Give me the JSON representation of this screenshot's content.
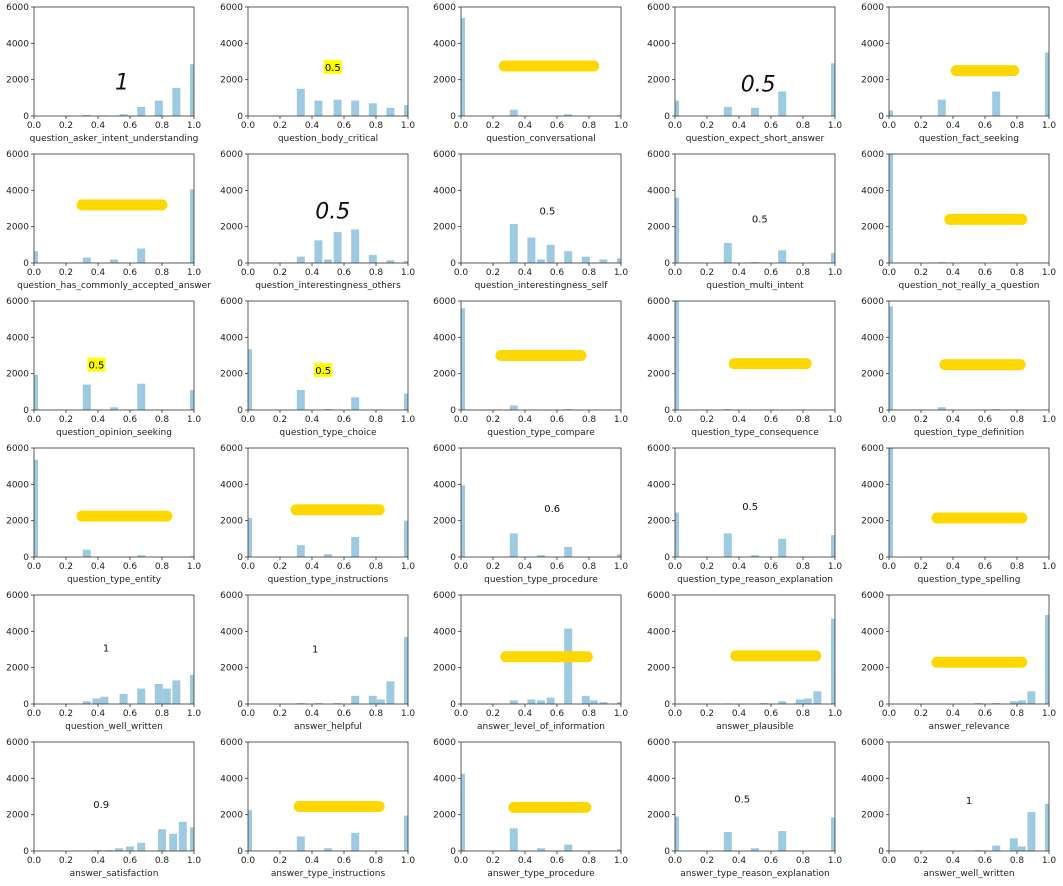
{
  "colors": {
    "bar": "#9ecae1",
    "axis": "#333333",
    "highlight": "#ffff00",
    "marker": "#ffd700"
  },
  "x_ticks": [
    "0.0",
    "0.2",
    "0.4",
    "0.6",
    "0.8",
    "1.0"
  ],
  "y_ticks": [
    "0",
    "2000",
    "4000",
    "6000"
  ],
  "chart_data": [
    {
      "type": "bar",
      "xlabel": "question_asker_intent_understanding",
      "xlim": [
        0,
        1
      ],
      "ylim": [
        0,
        6000
      ],
      "x": [
        0.33,
        0.44,
        0.56,
        0.67,
        0.78,
        0.89,
        1.0
      ],
      "values": [
        50,
        30,
        100,
        500,
        850,
        1550,
        2850
      ],
      "annotation": {
        "text": "1",
        "style": "handwritten",
        "x": 0.55,
        "y": 1900
      }
    },
    {
      "type": "bar",
      "xlabel": "question_body_critical",
      "xlim": [
        0,
        1
      ],
      "ylim": [
        0,
        6000
      ],
      "x": [
        0.33,
        0.44,
        0.56,
        0.67,
        0.78,
        0.89,
        1.0
      ],
      "values": [
        1500,
        850,
        900,
        850,
        700,
        450,
        600
      ],
      "annotation": {
        "text": "0.5",
        "style": "highlight",
        "x": 0.53,
        "y": 2700
      }
    },
    {
      "type": "bar",
      "xlabel": "question_conversational",
      "xlim": [
        0,
        1
      ],
      "ylim": [
        0,
        6000
      ],
      "x": [
        0.0,
        0.33,
        0.67,
        1.0
      ],
      "values": [
        5400,
        350,
        100,
        50
      ],
      "annotation": {
        "text": "",
        "style": "marker",
        "x0": 0.27,
        "x1": 0.83,
        "y": 2750
      }
    },
    {
      "type": "bar",
      "xlabel": "question_expect_short_answer",
      "xlim": [
        0,
        1
      ],
      "ylim": [
        0,
        6000
      ],
      "x": [
        0.0,
        0.33,
        0.5,
        0.67,
        1.0
      ],
      "values": [
        850,
        500,
        450,
        1350,
        2900
      ],
      "annotation": {
        "text": "0.5",
        "style": "handwritten",
        "x": 0.52,
        "y": 1800
      }
    },
    {
      "type": "bar",
      "xlabel": "question_fact_seeking",
      "xlim": [
        0,
        1
      ],
      "ylim": [
        0,
        6000
      ],
      "x": [
        0.0,
        0.33,
        0.67,
        1.0
      ],
      "values": [
        300,
        900,
        1350,
        3500
      ],
      "annotation": {
        "text": "",
        "style": "marker",
        "x0": 0.42,
        "x1": 0.78,
        "y": 2500
      }
    },
    {
      "type": "bar",
      "xlabel": "question_has_commonly_accepted_answer",
      "xlim": [
        0,
        1
      ],
      "ylim": [
        0,
        6000
      ],
      "x": [
        0.0,
        0.33,
        0.5,
        0.67,
        1.0
      ],
      "values": [
        650,
        300,
        200,
        800,
        4050
      ],
      "annotation": {
        "text": "",
        "style": "marker",
        "x0": 0.3,
        "x1": 0.8,
        "y": 3200
      }
    },
    {
      "type": "bar",
      "xlabel": "question_interestingness_others",
      "xlim": [
        0,
        1
      ],
      "ylim": [
        0,
        6000
      ],
      "x": [
        0.33,
        0.44,
        0.5,
        0.56,
        0.67,
        0.78,
        0.89,
        1.0
      ],
      "values": [
        350,
        1250,
        200,
        1700,
        1850,
        450,
        150,
        100
      ],
      "annotation": {
        "text": "0.5",
        "style": "handwritten",
        "x": 0.53,
        "y": 2900
      }
    },
    {
      "type": "bar",
      "xlabel": "question_interestingness_self",
      "xlim": [
        0,
        1
      ],
      "ylim": [
        0,
        6000
      ],
      "x": [
        0.33,
        0.44,
        0.5,
        0.56,
        0.67,
        0.78,
        0.89,
        1.0
      ],
      "values": [
        2150,
        1400,
        200,
        1000,
        650,
        350,
        200,
        250
      ],
      "annotation": {
        "text": "0.5",
        "style": "plain",
        "x": 0.54,
        "y": 2900
      }
    },
    {
      "type": "bar",
      "xlabel": "question_multi_intent",
      "xlim": [
        0,
        1
      ],
      "ylim": [
        0,
        6000
      ],
      "x": [
        0.0,
        0.33,
        0.5,
        0.67,
        1.0
      ],
      "values": [
        3600,
        1100,
        50,
        700,
        550
      ],
      "annotation": {
        "text": "0.5",
        "style": "plain",
        "x": 0.53,
        "y": 2450
      }
    },
    {
      "type": "bar",
      "xlabel": "question_not_really_a_question",
      "xlim": [
        0,
        1
      ],
      "ylim": [
        0,
        6000
      ],
      "x": [
        0.0,
        0.33
      ],
      "values": [
        6000,
        50
      ],
      "annotation": {
        "text": "",
        "style": "marker",
        "x0": 0.38,
        "x1": 0.83,
        "y": 2400
      }
    },
    {
      "type": "bar",
      "xlabel": "question_opinion_seeking",
      "xlim": [
        0,
        1
      ],
      "ylim": [
        0,
        6000
      ],
      "x": [
        0.0,
        0.33,
        0.5,
        0.67,
        1.0
      ],
      "values": [
        1950,
        1400,
        150,
        1450,
        1100
      ],
      "annotation": {
        "text": "0.5",
        "style": "highlight",
        "x": 0.39,
        "y": 2500
      }
    },
    {
      "type": "bar",
      "xlabel": "question_type_choice",
      "xlim": [
        0,
        1
      ],
      "ylim": [
        0,
        6000
      ],
      "x": [
        0.0,
        0.33,
        0.5,
        0.67,
        1.0
      ],
      "values": [
        3350,
        1100,
        50,
        700,
        900
      ],
      "annotation": {
        "text": "0.5",
        "style": "highlight",
        "x": 0.47,
        "y": 2200
      }
    },
    {
      "type": "bar",
      "xlabel": "question_type_compare",
      "xlim": [
        0,
        1
      ],
      "ylim": [
        0,
        6000
      ],
      "x": [
        0.0,
        0.33,
        0.67
      ],
      "values": [
        5600,
        250,
        50
      ],
      "annotation": {
        "text": "",
        "style": "marker",
        "x0": 0.25,
        "x1": 0.75,
        "y": 3000
      }
    },
    {
      "type": "bar",
      "xlabel": "question_type_consequence",
      "xlim": [
        0,
        1
      ],
      "ylim": [
        0,
        6000
      ],
      "x": [
        0.0,
        0.33
      ],
      "values": [
        6000,
        50
      ],
      "annotation": {
        "text": "",
        "style": "marker",
        "x0": 0.37,
        "x1": 0.82,
        "y": 2550
      }
    },
    {
      "type": "bar",
      "xlabel": "question_type_definition",
      "xlim": [
        0,
        1
      ],
      "ylim": [
        0,
        6000
      ],
      "x": [
        0.0,
        0.33,
        0.67
      ],
      "values": [
        5700,
        150,
        50
      ],
      "annotation": {
        "text": "",
        "style": "marker",
        "x0": 0.35,
        "x1": 0.82,
        "y": 2500
      }
    },
    {
      "type": "bar",
      "xlabel": "question_type_entity",
      "xlim": [
        0,
        1
      ],
      "ylim": [
        0,
        6000
      ],
      "x": [
        0.0,
        0.33,
        0.67,
        1.0
      ],
      "values": [
        5350,
        400,
        100,
        50
      ],
      "annotation": {
        "text": "",
        "style": "marker",
        "x0": 0.3,
        "x1": 0.83,
        "y": 2250
      }
    },
    {
      "type": "bar",
      "xlabel": "question_type_instructions",
      "xlim": [
        0,
        1
      ],
      "ylim": [
        0,
        6000
      ],
      "x": [
        0.0,
        0.33,
        0.5,
        0.67,
        1.0
      ],
      "values": [
        2150,
        650,
        150,
        1100,
        2000
      ],
      "annotation": {
        "text": "",
        "style": "marker",
        "x0": 0.3,
        "x1": 0.82,
        "y": 2600
      }
    },
    {
      "type": "bar",
      "xlabel": "question_type_procedure",
      "xlim": [
        0,
        1
      ],
      "ylim": [
        0,
        6000
      ],
      "x": [
        0.0,
        0.33,
        0.5,
        0.67,
        1.0
      ],
      "values": [
        3950,
        1300,
        100,
        550,
        150
      ],
      "annotation": {
        "text": "0.6",
        "style": "plain",
        "x": 0.57,
        "y": 2700
      }
    },
    {
      "type": "bar",
      "xlabel": "question_type_reason_explanation",
      "xlim": [
        0,
        1
      ],
      "ylim": [
        0,
        6000
      ],
      "x": [
        0.0,
        0.33,
        0.5,
        0.67,
        1.0
      ],
      "values": [
        2450,
        1300,
        100,
        1000,
        1200
      ],
      "annotation": {
        "text": "0.5",
        "style": "plain",
        "x": 0.47,
        "y": 2800
      }
    },
    {
      "type": "bar",
      "xlabel": "question_type_spelling",
      "xlim": [
        0,
        1
      ],
      "ylim": [
        0,
        6000
      ],
      "x": [
        0.0
      ],
      "values": [
        6000
      ],
      "annotation": {
        "text": "",
        "style": "marker",
        "x0": 0.3,
        "x1": 0.83,
        "y": 2150
      }
    },
    {
      "type": "bar",
      "xlabel": "question_well_written",
      "xlim": [
        0,
        1
      ],
      "ylim": [
        0,
        6000
      ],
      "x": [
        0.33,
        0.39,
        0.44,
        0.56,
        0.67,
        0.78,
        0.83,
        0.89,
        1.0
      ],
      "values": [
        150,
        300,
        400,
        550,
        850,
        1100,
        850,
        1300,
        1600
      ],
      "annotation": {
        "text": "1",
        "style": "plain",
        "x": 0.45,
        "y": 3100
      }
    },
    {
      "type": "bar",
      "xlabel": "answer_helpful",
      "xlim": [
        0,
        1
      ],
      "ylim": [
        0,
        6000
      ],
      "x": [
        0.33,
        0.44,
        0.56,
        0.67,
        0.78,
        0.83,
        0.89,
        1.0
      ],
      "values": [
        50,
        50,
        50,
        450,
        450,
        250,
        1250,
        3700
      ],
      "annotation": {
        "text": "1",
        "style": "plain",
        "x": 0.42,
        "y": 3050
      }
    },
    {
      "type": "bar",
      "xlabel": "answer_level_of_information",
      "xlim": [
        0,
        1
      ],
      "ylim": [
        0,
        6000
      ],
      "x": [
        0.33,
        0.44,
        0.5,
        0.56,
        0.67,
        0.78,
        0.83,
        0.89,
        1.0
      ],
      "values": [
        200,
        250,
        200,
        350,
        4150,
        450,
        200,
        100,
        100
      ],
      "annotation": {
        "text": "",
        "style": "marker",
        "x0": 0.28,
        "x1": 0.79,
        "y": 2600
      }
    },
    {
      "type": "bar",
      "xlabel": "answer_plausible",
      "xlim": [
        0,
        1
      ],
      "ylim": [
        0,
        6000
      ],
      "x": [
        0.33,
        0.56,
        0.67,
        0.78,
        0.83,
        0.89,
        1.0
      ],
      "values": [
        30,
        50,
        150,
        250,
        300,
        700,
        4700
      ],
      "annotation": {
        "text": "",
        "style": "marker",
        "x0": 0.38,
        "x1": 0.88,
        "y": 2650
      }
    },
    {
      "type": "bar",
      "xlabel": "answer_relevance",
      "xlim": [
        0,
        1
      ],
      "ylim": [
        0,
        6000
      ],
      "x": [
        0.56,
        0.67,
        0.78,
        0.83,
        0.89,
        1.0
      ],
      "values": [
        50,
        50,
        150,
        200,
        700,
        4900
      ],
      "annotation": {
        "text": "",
        "style": "marker",
        "x0": 0.3,
        "x1": 0.83,
        "y": 2300
      }
    },
    {
      "type": "bar",
      "xlabel": "answer_satisfaction",
      "xlim": [
        0,
        1
      ],
      "ylim": [
        0,
        6000
      ],
      "x": [
        0.4,
        0.47,
        0.53,
        0.6,
        0.67,
        0.8,
        0.87,
        0.93,
        1.0
      ],
      "values": [
        50,
        50,
        150,
        250,
        450,
        1200,
        950,
        1600,
        1300
      ],
      "annotation": {
        "text": "0.9",
        "style": "plain",
        "x": 0.42,
        "y": 2600
      }
    },
    {
      "type": "bar",
      "xlabel": "answer_type_instructions",
      "xlim": [
        0,
        1
      ],
      "ylim": [
        0,
        6000
      ],
      "x": [
        0.0,
        0.33,
        0.5,
        0.67,
        1.0
      ],
      "values": [
        2250,
        800,
        150,
        1000,
        1950
      ],
      "annotation": {
        "text": "",
        "style": "marker",
        "x0": 0.32,
        "x1": 0.82,
        "y": 2450
      }
    },
    {
      "type": "bar",
      "xlabel": "answer_type_procedure",
      "xlim": [
        0,
        1
      ],
      "ylim": [
        0,
        6000
      ],
      "x": [
        0.0,
        0.33,
        0.5,
        0.67,
        1.0
      ],
      "values": [
        4250,
        1250,
        150,
        350,
        100
      ],
      "annotation": {
        "text": "",
        "style": "marker",
        "x0": 0.33,
        "x1": 0.78,
        "y": 2400
      }
    },
    {
      "type": "bar",
      "xlabel": "answer_type_reason_explanation",
      "xlim": [
        0,
        1
      ],
      "ylim": [
        0,
        6000
      ],
      "x": [
        0.0,
        0.33,
        0.5,
        0.67,
        1.0
      ],
      "values": [
        1900,
        1050,
        150,
        1100,
        1850
      ],
      "annotation": {
        "text": "0.5",
        "style": "plain",
        "x": 0.42,
        "y": 2900
      }
    },
    {
      "type": "bar",
      "xlabel": "answer_well_written",
      "xlim": [
        0,
        1
      ],
      "ylim": [
        0,
        6000
      ],
      "x": [
        0.56,
        0.67,
        0.78,
        0.83,
        0.89,
        1.0
      ],
      "values": [
        50,
        300,
        700,
        250,
        2150,
        2600
      ],
      "annotation": {
        "text": "1",
        "style": "plain",
        "x": 0.5,
        "y": 2800
      }
    }
  ]
}
